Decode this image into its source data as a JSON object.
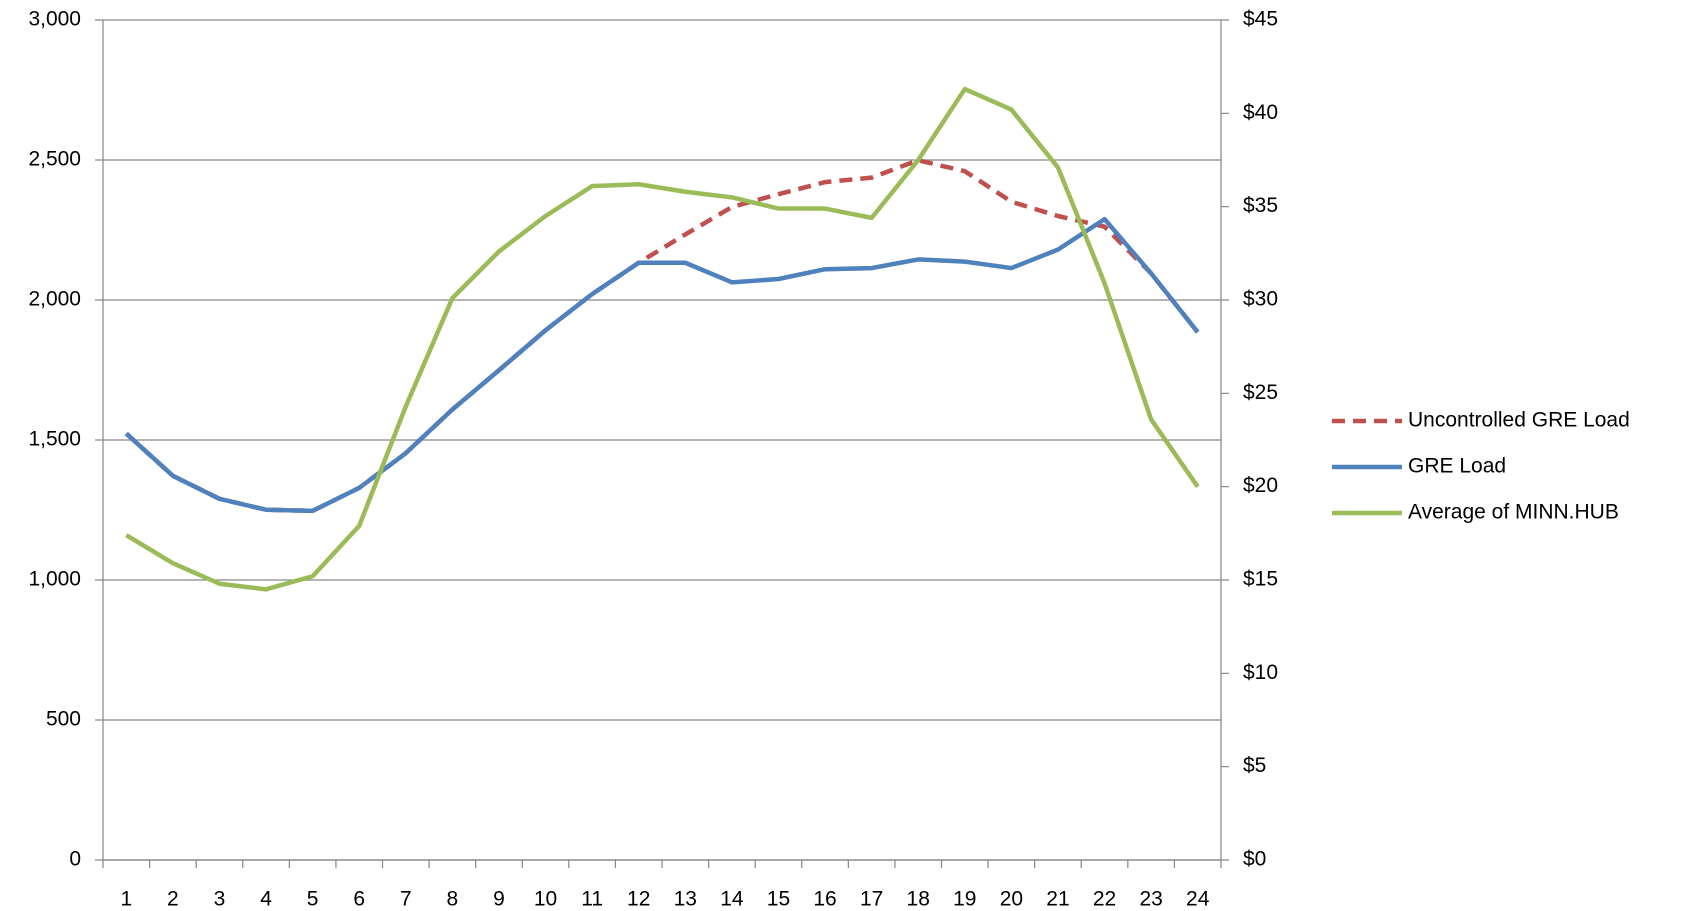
{
  "chart_data": {
    "type": "line",
    "categories": [
      1,
      2,
      3,
      4,
      5,
      6,
      7,
      8,
      9,
      10,
      11,
      12,
      13,
      14,
      15,
      16,
      17,
      18,
      19,
      20,
      21,
      22,
      23,
      24
    ],
    "series": [
      {
        "name": "Uncontrolled GRE Load",
        "color": "#c0504d",
        "dashed": true,
        "values": [
          1523,
          1372,
          1290,
          1251,
          1247,
          1329,
          1453,
          1609,
          1749,
          1892,
          2021,
          2133,
          2234,
          2332,
          2378,
          2421,
          2437,
          2499,
          2460,
          2351,
          2300,
          2262,
          2095,
          1885
        ]
      },
      {
        "name": "GRE Load",
        "color": "#4f81bd",
        "values": [
          1523,
          1372,
          1290,
          1251,
          1247,
          1329,
          1453,
          1609,
          1749,
          1892,
          2021,
          2133,
          2133,
          2063,
          2075,
          2110,
          2114,
          2145,
          2137,
          2114,
          2180,
          2289,
          2095,
          1885
        ]
      },
      {
        "name": "Average of MINN.HUB",
        "color": "#9bbb59",
        "axis": "y2",
        "values": [
          17.4,
          15.9,
          14.8,
          14.5,
          15.2,
          17.9,
          24.3,
          30.1,
          32.6,
          34.5,
          36.1,
          36.2,
          35.8,
          35.5,
          34.9,
          34.9,
          34.4,
          37.5,
          41.3,
          40.2,
          37.1,
          30.9,
          23.6,
          20.0
        ]
      }
    ],
    "ylim": [
      0,
      3000
    ],
    "yticks": [
      0,
      500,
      {
        "value": 1000,
        "label": "1,000"
      },
      {
        "value": 1500,
        "label": "1,500"
      },
      {
        "value": 2000,
        "label": "2,000"
      },
      {
        "value": 2500,
        "label": "2,500"
      },
      {
        "value": 3000,
        "label": "3,000"
      }
    ],
    "y2lim": [
      0,
      45
    ],
    "y2ticks": [
      {
        "value": 0,
        "label": "$0"
      },
      {
        "value": 5,
        "label": "$5"
      },
      {
        "value": 10,
        "label": "$10"
      },
      {
        "value": 15,
        "label": "$15"
      },
      {
        "value": 20,
        "label": "$20"
      },
      {
        "value": 25,
        "label": "$25"
      },
      {
        "value": 30,
        "label": "$30"
      },
      {
        "value": 35,
        "label": "$35"
      },
      {
        "value": 40,
        "label": "$40"
      },
      {
        "value": 45,
        "label": "$45"
      }
    ],
    "grid": true,
    "legend": "right"
  }
}
